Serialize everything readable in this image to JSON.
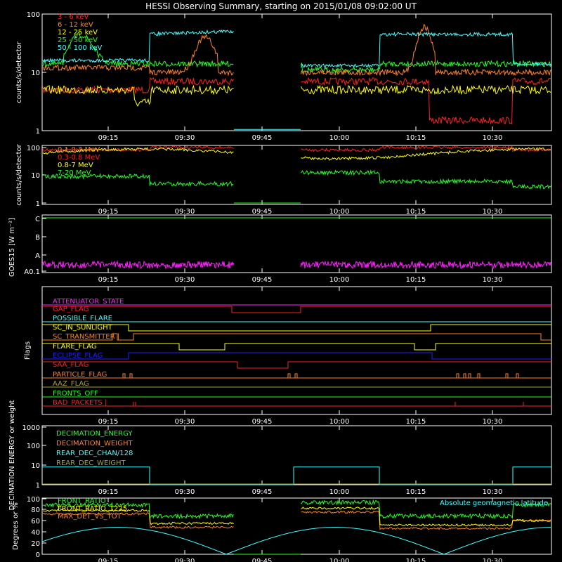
{
  "title": "HESSI Observing Summary, starting on 2015/01/08 09:02:00 UT",
  "time_ticks": [
    "09:15",
    "09:30",
    "09:45",
    "10:00",
    "10:15",
    "10:30"
  ],
  "colors": {
    "background": "#000000",
    "axes": "#ffffff",
    "red": "#ff2020",
    "orange": "#ff8020",
    "yellow": "#ffff00",
    "green": "#20ff20",
    "cyan": "#40ffff",
    "magenta": "#ff20ff",
    "blue": "#2020ff",
    "olive": "#a0a040"
  },
  "chart_data": [
    {
      "type": "line",
      "id": "photon",
      "ylabel": "counts/s/detector",
      "yscale": "log",
      "ylim": [
        1,
        100
      ],
      "yticks": [
        "1",
        "10",
        "100"
      ],
      "legend_placement": "top-left",
      "series": [
        {
          "name": "3 - 6 keV",
          "color": "#ff2020"
        },
        {
          "name": "6 - 12 keV",
          "color": "#ff8020"
        },
        {
          "name": "12 - 25 keV",
          "color": "#ffff00"
        },
        {
          "name": "25 - 50 keV",
          "color": "#20ff20"
        },
        {
          "name": "50 - 100 keV",
          "color": "#40ffff"
        }
      ]
    },
    {
      "type": "line",
      "id": "gamma",
      "ylabel": "counts/s/detector",
      "yscale": "log",
      "ylim": [
        1,
        100
      ],
      "yticks": [
        "1",
        "10",
        "100"
      ],
      "legend_placement": "top-left",
      "series": [
        {
          "name": "0.1-0.3 MeV",
          "color": "#ff8020"
        },
        {
          "name": "0.3-0.8 MeV",
          "color": "#ff2020"
        },
        {
          "name": "0.8-7 MeV",
          "color": "#ffff00"
        },
        {
          "name": "7-20 MeV",
          "color": "#20ff20"
        }
      ]
    },
    {
      "type": "line",
      "id": "goes",
      "ylabel": "GOES15 [W m⁻²]",
      "yticks": [
        "A0.1",
        "A",
        "B",
        "C"
      ],
      "series": [
        {
          "name": "GOES",
          "color": "#ff20ff"
        }
      ]
    },
    {
      "type": "line",
      "id": "flags",
      "ylabel": "Flags",
      "series": [
        {
          "name": "ATTENUATOR_STATE",
          "color": "#ff20ff"
        },
        {
          "name": "GAP_FLAG",
          "color": "#ff2020"
        },
        {
          "name": "POSSIBLE_FLARE",
          "color": "#40ffff"
        },
        {
          "name": "SC_IN_SUNLIGHT",
          "color": "#ffff00"
        },
        {
          "name": "SC_TRANSMITTER",
          "color": "#ff8020"
        },
        {
          "name": "FLARE_FLAG",
          "color": "#ffff00"
        },
        {
          "name": "ECLIPSE_FLAG",
          "color": "#2020ff"
        },
        {
          "name": "SAA_FLAG",
          "color": "#ff2020"
        },
        {
          "name": "PARTICLE_FLAG",
          "color": "#ff8020"
        },
        {
          "name": "AAZ_FLAG",
          "color": "#a0a040"
        },
        {
          "name": "FRONTS_OFF",
          "color": "#20ff20"
        },
        {
          "name": "BAD_PACKETS",
          "color": "#ff2020"
        }
      ]
    },
    {
      "type": "line",
      "id": "decim",
      "ylabel": "DECIMATION ENERGY or weight",
      "yscale": "log",
      "ylim": [
        1,
        1000
      ],
      "yticks": [
        "1",
        "10",
        "100",
        "1000"
      ],
      "series": [
        {
          "name": "DECIMATION_ENERGY",
          "color": "#20ff20"
        },
        {
          "name": "DECIMATION_WEIGHT",
          "color": "#ff8020"
        },
        {
          "name": "REAR_DEC_CHAN/128",
          "color": "#40ffff"
        },
        {
          "name": "REAR_DEC_WEIGHT",
          "color": "#a0a040"
        }
      ]
    },
    {
      "type": "line",
      "id": "ratio",
      "ylabel": "Degrees or %",
      "ylim": [
        0,
        100
      ],
      "yticks": [
        "0",
        "20",
        "40",
        "60",
        "80",
        "100"
      ],
      "series": [
        {
          "name": "FRONT_RATIO",
          "color": "#20ff20"
        },
        {
          "name": "FRONT_RATIO_1225",
          "color": "#ffff00"
        },
        {
          "name": "MAX_DET_VS_TOT",
          "color": "#ff8020"
        },
        {
          "name": "Absolute geomagnetic latitude",
          "color": "#40ffff"
        }
      ]
    }
  ]
}
